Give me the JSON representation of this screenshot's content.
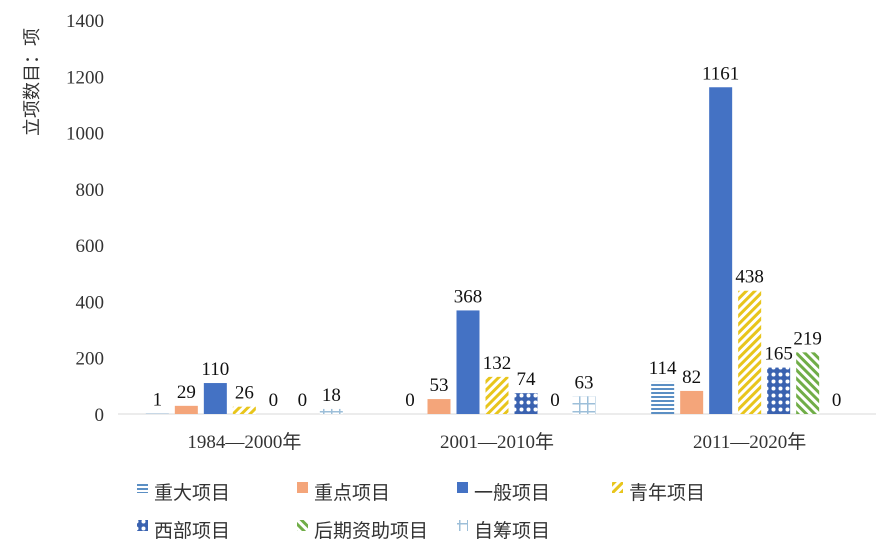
{
  "chart_data": {
    "type": "bar",
    "title": "",
    "xlabel": "",
    "ylabel": "立项数目：项",
    "ylim": [
      0,
      1400
    ],
    "yticks": [
      0,
      200,
      400,
      600,
      800,
      1000,
      1200,
      1400
    ],
    "grid": false,
    "legend_position": "bottom",
    "categories": [
      "1984—2000年",
      "2001—2010年",
      "2011—2020年"
    ],
    "series": [
      {
        "name": "重大项目",
        "values": [
          1,
          0,
          114
        ],
        "color": "#5b8fc4",
        "pattern": "hlines"
      },
      {
        "name": "重点项目",
        "values": [
          29,
          53,
          82
        ],
        "color": "#f4a57a",
        "pattern": "solid"
      },
      {
        "name": "一般项目",
        "values": [
          110,
          368,
          1161
        ],
        "color": "#4472c4",
        "pattern": "solid"
      },
      {
        "name": "青年项目",
        "values": [
          26,
          132,
          438
        ],
        "color": "#e8c51c",
        "pattern": "diag"
      },
      {
        "name": "西部项目",
        "values": [
          0,
          74,
          165
        ],
        "color": "#3a62b0",
        "pattern": "dots"
      },
      {
        "name": "后期资助项目",
        "values": [
          0,
          0,
          219
        ],
        "color": "#70ad47",
        "pattern": "diag"
      },
      {
        "name": "自筹项目",
        "values": [
          18,
          63,
          0
        ],
        "color": "#9dbfd9",
        "pattern": "grid"
      }
    ]
  }
}
